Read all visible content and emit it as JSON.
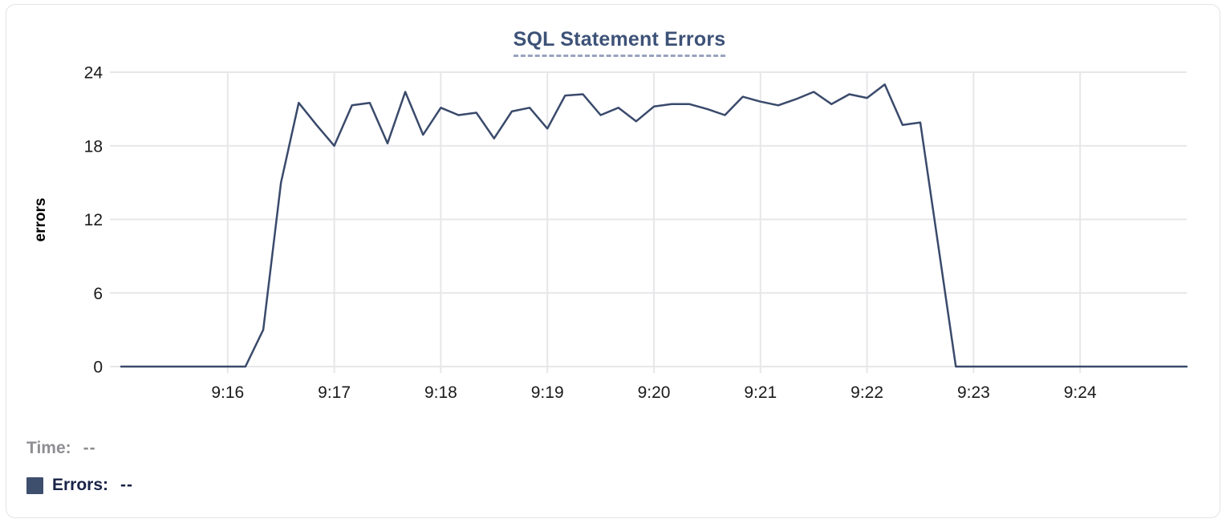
{
  "header": {
    "title": "SQL Statement Errors"
  },
  "legend": {
    "time_label": "Time:",
    "time_value": "--",
    "errors_label": "Errors:",
    "errors_value": "--",
    "swatch_color": "#3e4e6d"
  },
  "colors": {
    "line": "#3a4a6b",
    "grid": "#e7e7ea",
    "axis_text": "#1a1a1a",
    "title": "#3d5277",
    "title_underline": "#99a3bf",
    "card_border": "#e4e4e8"
  },
  "chart_data": {
    "type": "line",
    "title": "SQL Statement Errors",
    "xlabel": "",
    "ylabel": "errors",
    "series_name": "Errors",
    "ylim": [
      0,
      24
    ],
    "yticks": [
      0,
      6,
      12,
      18,
      24
    ],
    "xtick_labels": [
      "9:16",
      "9:17",
      "9:18",
      "9:19",
      "9:20",
      "9:21",
      "9:22",
      "9:23",
      "9:24"
    ],
    "x_range": [
      "9:15:00",
      "9:25:00"
    ],
    "grid": true,
    "legend_position": "bottom-left",
    "x": [
      "9:15:00",
      "9:15:10",
      "9:15:20",
      "9:15:30",
      "9:15:40",
      "9:15:50",
      "9:16:00",
      "9:16:10",
      "9:16:20",
      "9:16:30",
      "9:16:40",
      "9:16:50",
      "9:17:00",
      "9:17:10",
      "9:17:20",
      "9:17:30",
      "9:17:40",
      "9:17:50",
      "9:18:00",
      "9:18:10",
      "9:18:20",
      "9:18:30",
      "9:18:40",
      "9:18:50",
      "9:19:00",
      "9:19:10",
      "9:19:20",
      "9:19:30",
      "9:19:40",
      "9:19:50",
      "9:20:00",
      "9:20:10",
      "9:20:20",
      "9:20:30",
      "9:20:40",
      "9:20:50",
      "9:21:00",
      "9:21:10",
      "9:21:20",
      "9:21:30",
      "9:21:40",
      "9:21:50",
      "9:22:00",
      "9:22:10",
      "9:22:20",
      "9:22:30",
      "9:22:40",
      "9:22:50",
      "9:23:00",
      "9:23:10",
      "9:23:20",
      "9:23:30",
      "9:23:40",
      "9:23:50",
      "9:24:00",
      "9:24:10",
      "9:24:20",
      "9:24:30",
      "9:24:40",
      "9:24:50",
      "9:25:00"
    ],
    "values": [
      0,
      0,
      0,
      0,
      0,
      0,
      0,
      0,
      3,
      15,
      21.5,
      19.7,
      18,
      21.3,
      21.5,
      18.2,
      22.4,
      18.9,
      21.1,
      20.5,
      20.7,
      18.6,
      20.8,
      21.1,
      19.4,
      22.1,
      22.2,
      20.5,
      21.1,
      20,
      21.2,
      21.4,
      21.4,
      21,
      20.5,
      22,
      21.6,
      21.3,
      21.8,
      22.4,
      21.4,
      22.2,
      21.9,
      23,
      19.7,
      19.9,
      10,
      0,
      0,
      0,
      0,
      0,
      0,
      0,
      0,
      0,
      0,
      0,
      0,
      0,
      0
    ]
  }
}
